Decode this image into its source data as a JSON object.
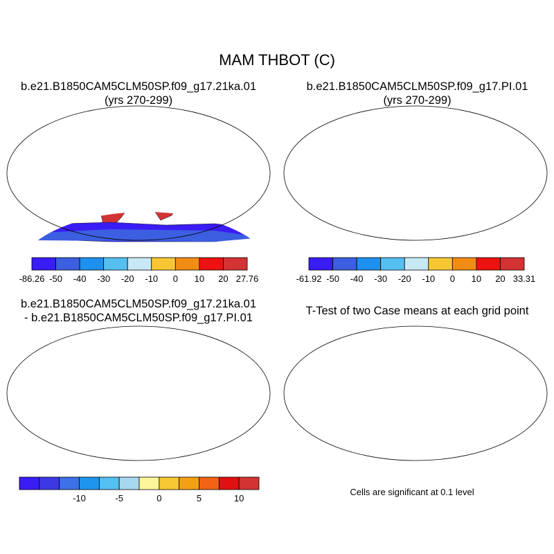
{
  "title": "MAM THBOT (C)",
  "panels": [
    {
      "title_line1": "b.e21.B1850CAM5CLM50SP.f09_g17.21ka.01",
      "title_line2": "(yrs 270-299)",
      "colorbar": {
        "colors": [
          "#3a1cf5",
          "#3c5ee0",
          "#1e90f0",
          "#55bff0",
          "#c8e8f5",
          "#f7c733",
          "#f28c14",
          "#ee1111",
          "#d33333"
        ],
        "labels": [
          "-86.26",
          "-50",
          "-40",
          "-30",
          "-20",
          "-10",
          "0",
          "10",
          "20",
          "27.76"
        ]
      }
    },
    {
      "title_line1": "b.e21.B1850CAM5CLM50SP.f09_g17.PI.01",
      "title_line2": "(yrs 270-299)",
      "colorbar": {
        "colors": [
          "#3a1cf5",
          "#3c5ee0",
          "#1e90f0",
          "#55bff0",
          "#c8e8f5",
          "#f7c733",
          "#f28c14",
          "#ee1111",
          "#d33333"
        ],
        "labels": [
          "-61.92",
          "-50",
          "-40",
          "-30",
          "-20",
          "-10",
          "0",
          "10",
          "20",
          "33.31"
        ]
      }
    },
    {
      "title_line1": "b.e21.B1850CAM5CLM50SP.f09_g17.21ka.01",
      "title_line2": "- b.e21.B1850CAM5CLM50SP.f09_g17.PI.01",
      "colorbar": {
        "colors": [
          "#3a1cf5",
          "#3c38e6",
          "#3c70e6",
          "#1e96f0",
          "#55bff0",
          "#a8d8f0",
          "#fff59a",
          "#f7c733",
          "#f2a014",
          "#f06414",
          "#e01111",
          "#d33333"
        ],
        "labels": [
          "-10",
          "-5",
          "0",
          "5",
          "10"
        ]
      }
    },
    {
      "title_line1": "T-Test of two Case means at each grid point",
      "title_line2": ""
    }
  ],
  "significance_note": "Cells are significant at 0.1 level",
  "colors": {
    "land_significant": "#ee1111",
    "coastline": "#000000"
  }
}
